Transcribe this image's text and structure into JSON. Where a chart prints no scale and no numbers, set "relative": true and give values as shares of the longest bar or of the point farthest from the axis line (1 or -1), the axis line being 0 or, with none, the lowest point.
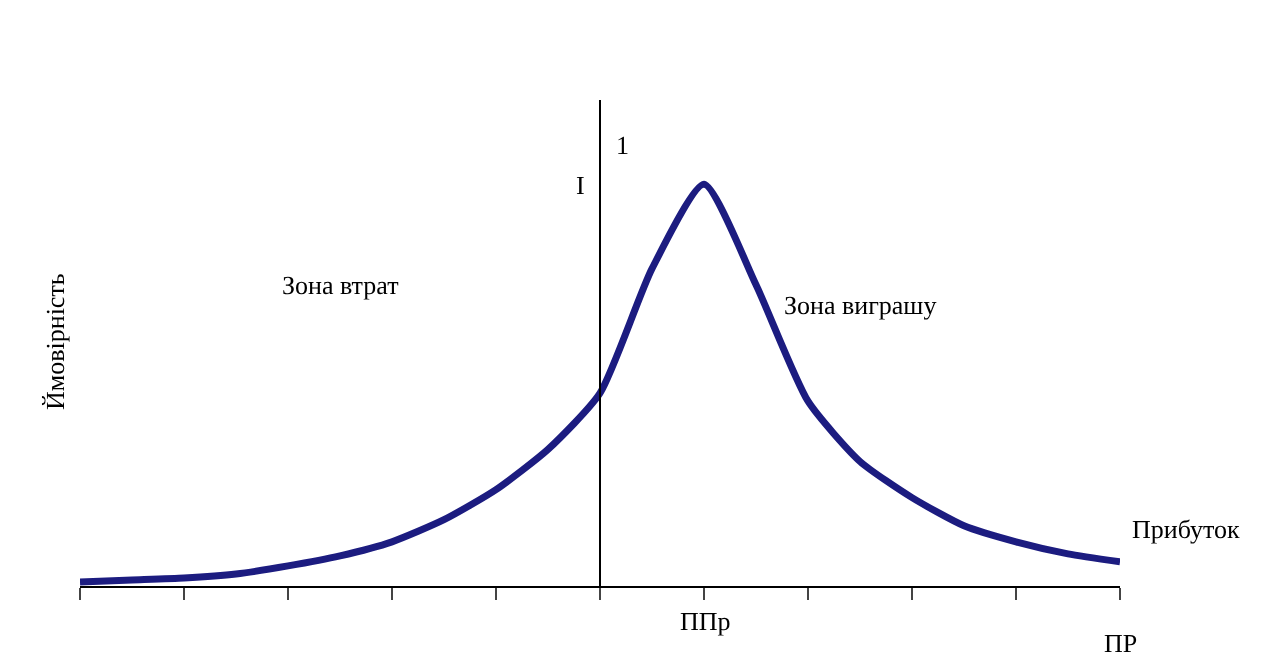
{
  "chart_data": {
    "type": "line",
    "relative": true,
    "xlabel": "ПР",
    "ylabel": "Ймовірність",
    "categories": [
      null,
      null,
      null,
      null,
      null,
      null,
      null,
      null,
      null,
      null,
      null,
      null,
      null,
      null,
      null,
      null,
      null,
      null,
      null,
      null,
      null
    ],
    "series": [
      {
        "color": "#1c1c80",
        "values": [
          0.01,
          0.015,
          0.02,
          0.03,
          0.05,
          0.075,
          0.11,
          0.165,
          0.24,
          0.34,
          0.48,
          0.79,
          1.0,
          0.75,
          0.46,
          0.31,
          0.22,
          0.15,
          0.11,
          0.08,
          0.06
        ]
      }
    ],
    "annotations": [
      "I",
      "1",
      "Зона втрат",
      "Зона виграшу",
      "Прибуток",
      "ППр"
    ],
    "legend": false,
    "marker": "none",
    "line_style": "solid"
  }
}
